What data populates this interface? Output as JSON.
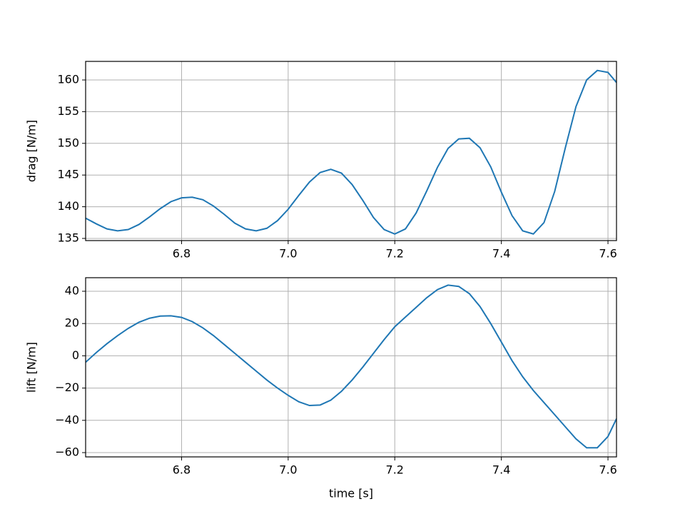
{
  "chart_data": [
    {
      "type": "line",
      "ylabel": "drag [N/m]",
      "x": [
        6.62,
        6.64,
        6.66,
        6.68,
        6.7,
        6.72,
        6.74,
        6.76,
        6.78,
        6.8,
        6.82,
        6.84,
        6.86,
        6.88,
        6.9,
        6.92,
        6.94,
        6.96,
        6.98,
        7.0,
        7.02,
        7.04,
        7.06,
        7.08,
        7.1,
        7.12,
        7.14,
        7.16,
        7.18,
        7.2,
        7.22,
        7.24,
        7.26,
        7.28,
        7.3,
        7.32,
        7.34,
        7.36,
        7.38,
        7.4,
        7.42,
        7.44,
        7.46,
        7.48,
        7.5,
        7.52,
        7.54,
        7.56,
        7.58,
        7.6,
        7.616
      ],
      "series": [
        {
          "color": "#1f77b4",
          "values": [
            138.2,
            137.3,
            136.5,
            136.2,
            136.4,
            137.2,
            138.4,
            139.7,
            140.8,
            141.4,
            141.5,
            141.1,
            140.1,
            138.8,
            137.4,
            136.5,
            136.2,
            136.6,
            137.8,
            139.6,
            141.8,
            143.9,
            145.4,
            145.9,
            145.3,
            143.5,
            141.0,
            138.3,
            136.4,
            135.7,
            136.5,
            139.0,
            142.5,
            146.2,
            149.2,
            150.7,
            150.8,
            149.3,
            146.3,
            142.3,
            138.6,
            136.2,
            135.7,
            137.5,
            142.4,
            149.3,
            155.8,
            160.0,
            161.5,
            161.2,
            159.6
          ]
        }
      ],
      "xlim": [
        6.62,
        7.616
      ],
      "xticks": [
        6.8,
        {
          "value": 7,
          "label": "7.0"
        },
        7.2,
        7.4,
        7.6
      ],
      "ylim": [
        134.66,
        162.93
      ],
      "yticks": [
        135,
        140,
        145,
        150,
        155,
        160
      ],
      "grid": true
    },
    {
      "type": "line",
      "ylabel": "lift [N/m]",
      "xlabel": "time [s]",
      "x": [
        6.62,
        6.64,
        6.66,
        6.68,
        6.7,
        6.72,
        6.74,
        6.76,
        6.78,
        6.8,
        6.82,
        6.84,
        6.86,
        6.88,
        6.9,
        6.92,
        6.94,
        6.96,
        6.98,
        7.0,
        7.02,
        7.04,
        7.06,
        7.08,
        7.1,
        7.12,
        7.14,
        7.16,
        7.18,
        7.2,
        7.22,
        7.24,
        7.26,
        7.28,
        7.3,
        7.32,
        7.34,
        7.36,
        7.38,
        7.4,
        7.42,
        7.44,
        7.46,
        7.48,
        7.5,
        7.52,
        7.54,
        7.56,
        7.58,
        7.6,
        7.616
      ],
      "series": [
        {
          "color": "#1f77b4",
          "values": [
            -4,
            2,
            7.5,
            12.5,
            17,
            20.8,
            23.3,
            24.6,
            24.8,
            23.8,
            21.2,
            17.3,
            12.5,
            7,
            1.5,
            -4,
            -9.5,
            -15,
            -20,
            -24.5,
            -28.5,
            -30.8,
            -30.5,
            -27.5,
            -22,
            -15,
            -7,
            1.5,
            10,
            18,
            24,
            30,
            36,
            41,
            43.8,
            43,
            38.5,
            30.5,
            20,
            8.5,
            -3,
            -13,
            -21.5,
            -29,
            -36.5,
            -44,
            -51.5,
            -57,
            -57,
            -50,
            -39
          ]
        }
      ],
      "xlim": [
        6.62,
        7.616
      ],
      "xticks": [
        6.8,
        {
          "value": 7,
          "label": "7.0"
        },
        7.2,
        7.4,
        7.6
      ],
      "ylim": [
        -62.65,
        48.4
      ],
      "yticks": [
        {
          "value": -60,
          "label": "−60"
        },
        {
          "value": -40,
          "label": "−40"
        },
        {
          "value": -20,
          "label": "−20"
        },
        0,
        20,
        40
      ],
      "grid": true
    }
  ]
}
